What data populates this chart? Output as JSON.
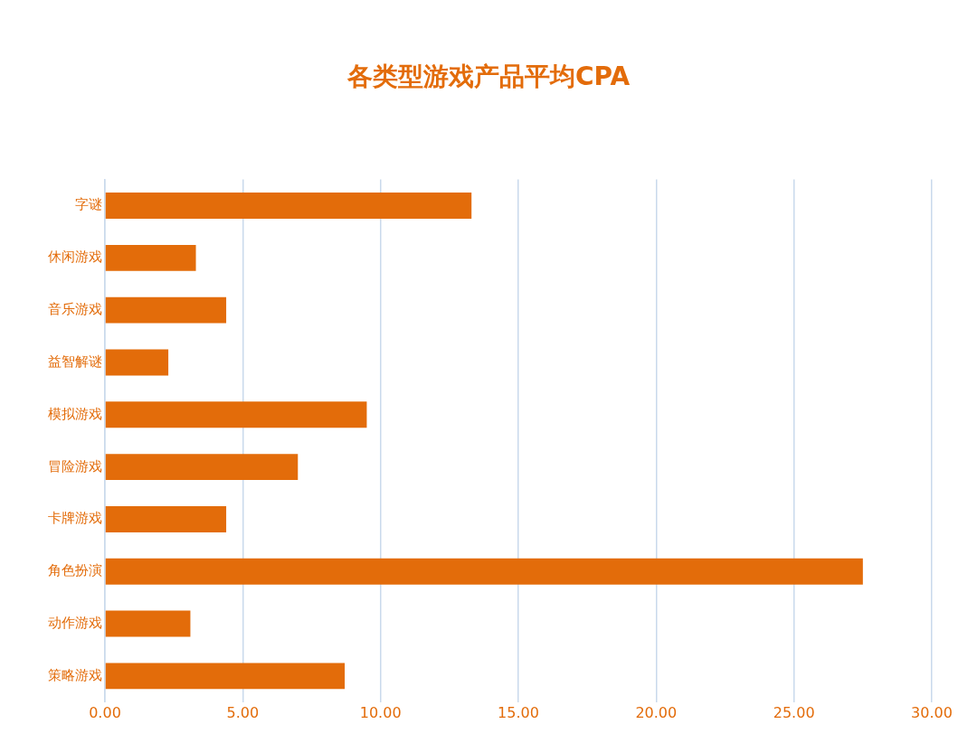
{
  "chart_data": {
    "type": "bar",
    "orientation": "horizontal",
    "title": "各类型游戏产品平均CPA",
    "categories": [
      "字谜",
      "休闲游戏",
      "音乐游戏",
      "益智解谜",
      "模拟游戏",
      "冒险游戏",
      "卡牌游戏",
      "角色扮演",
      "动作游戏",
      "策略游戏"
    ],
    "values": [
      13.3,
      3.3,
      4.4,
      2.3,
      9.5,
      7.0,
      4.4,
      27.5,
      3.1,
      8.7
    ],
    "color": "#e36c0a",
    "xlim": [
      0,
      30
    ],
    "xticks": [
      {
        "value": 0,
        "label": "0.00"
      },
      {
        "value": 5,
        "label": "5.00"
      },
      {
        "value": 10,
        "label": "10.00"
      },
      {
        "value": 15,
        "label": "15.00"
      },
      {
        "value": 20,
        "label": "20.00"
      },
      {
        "value": 25,
        "label": "25.00"
      },
      {
        "value": 30,
        "label": "30.00"
      }
    ],
    "grid": "x",
    "legend": false
  }
}
